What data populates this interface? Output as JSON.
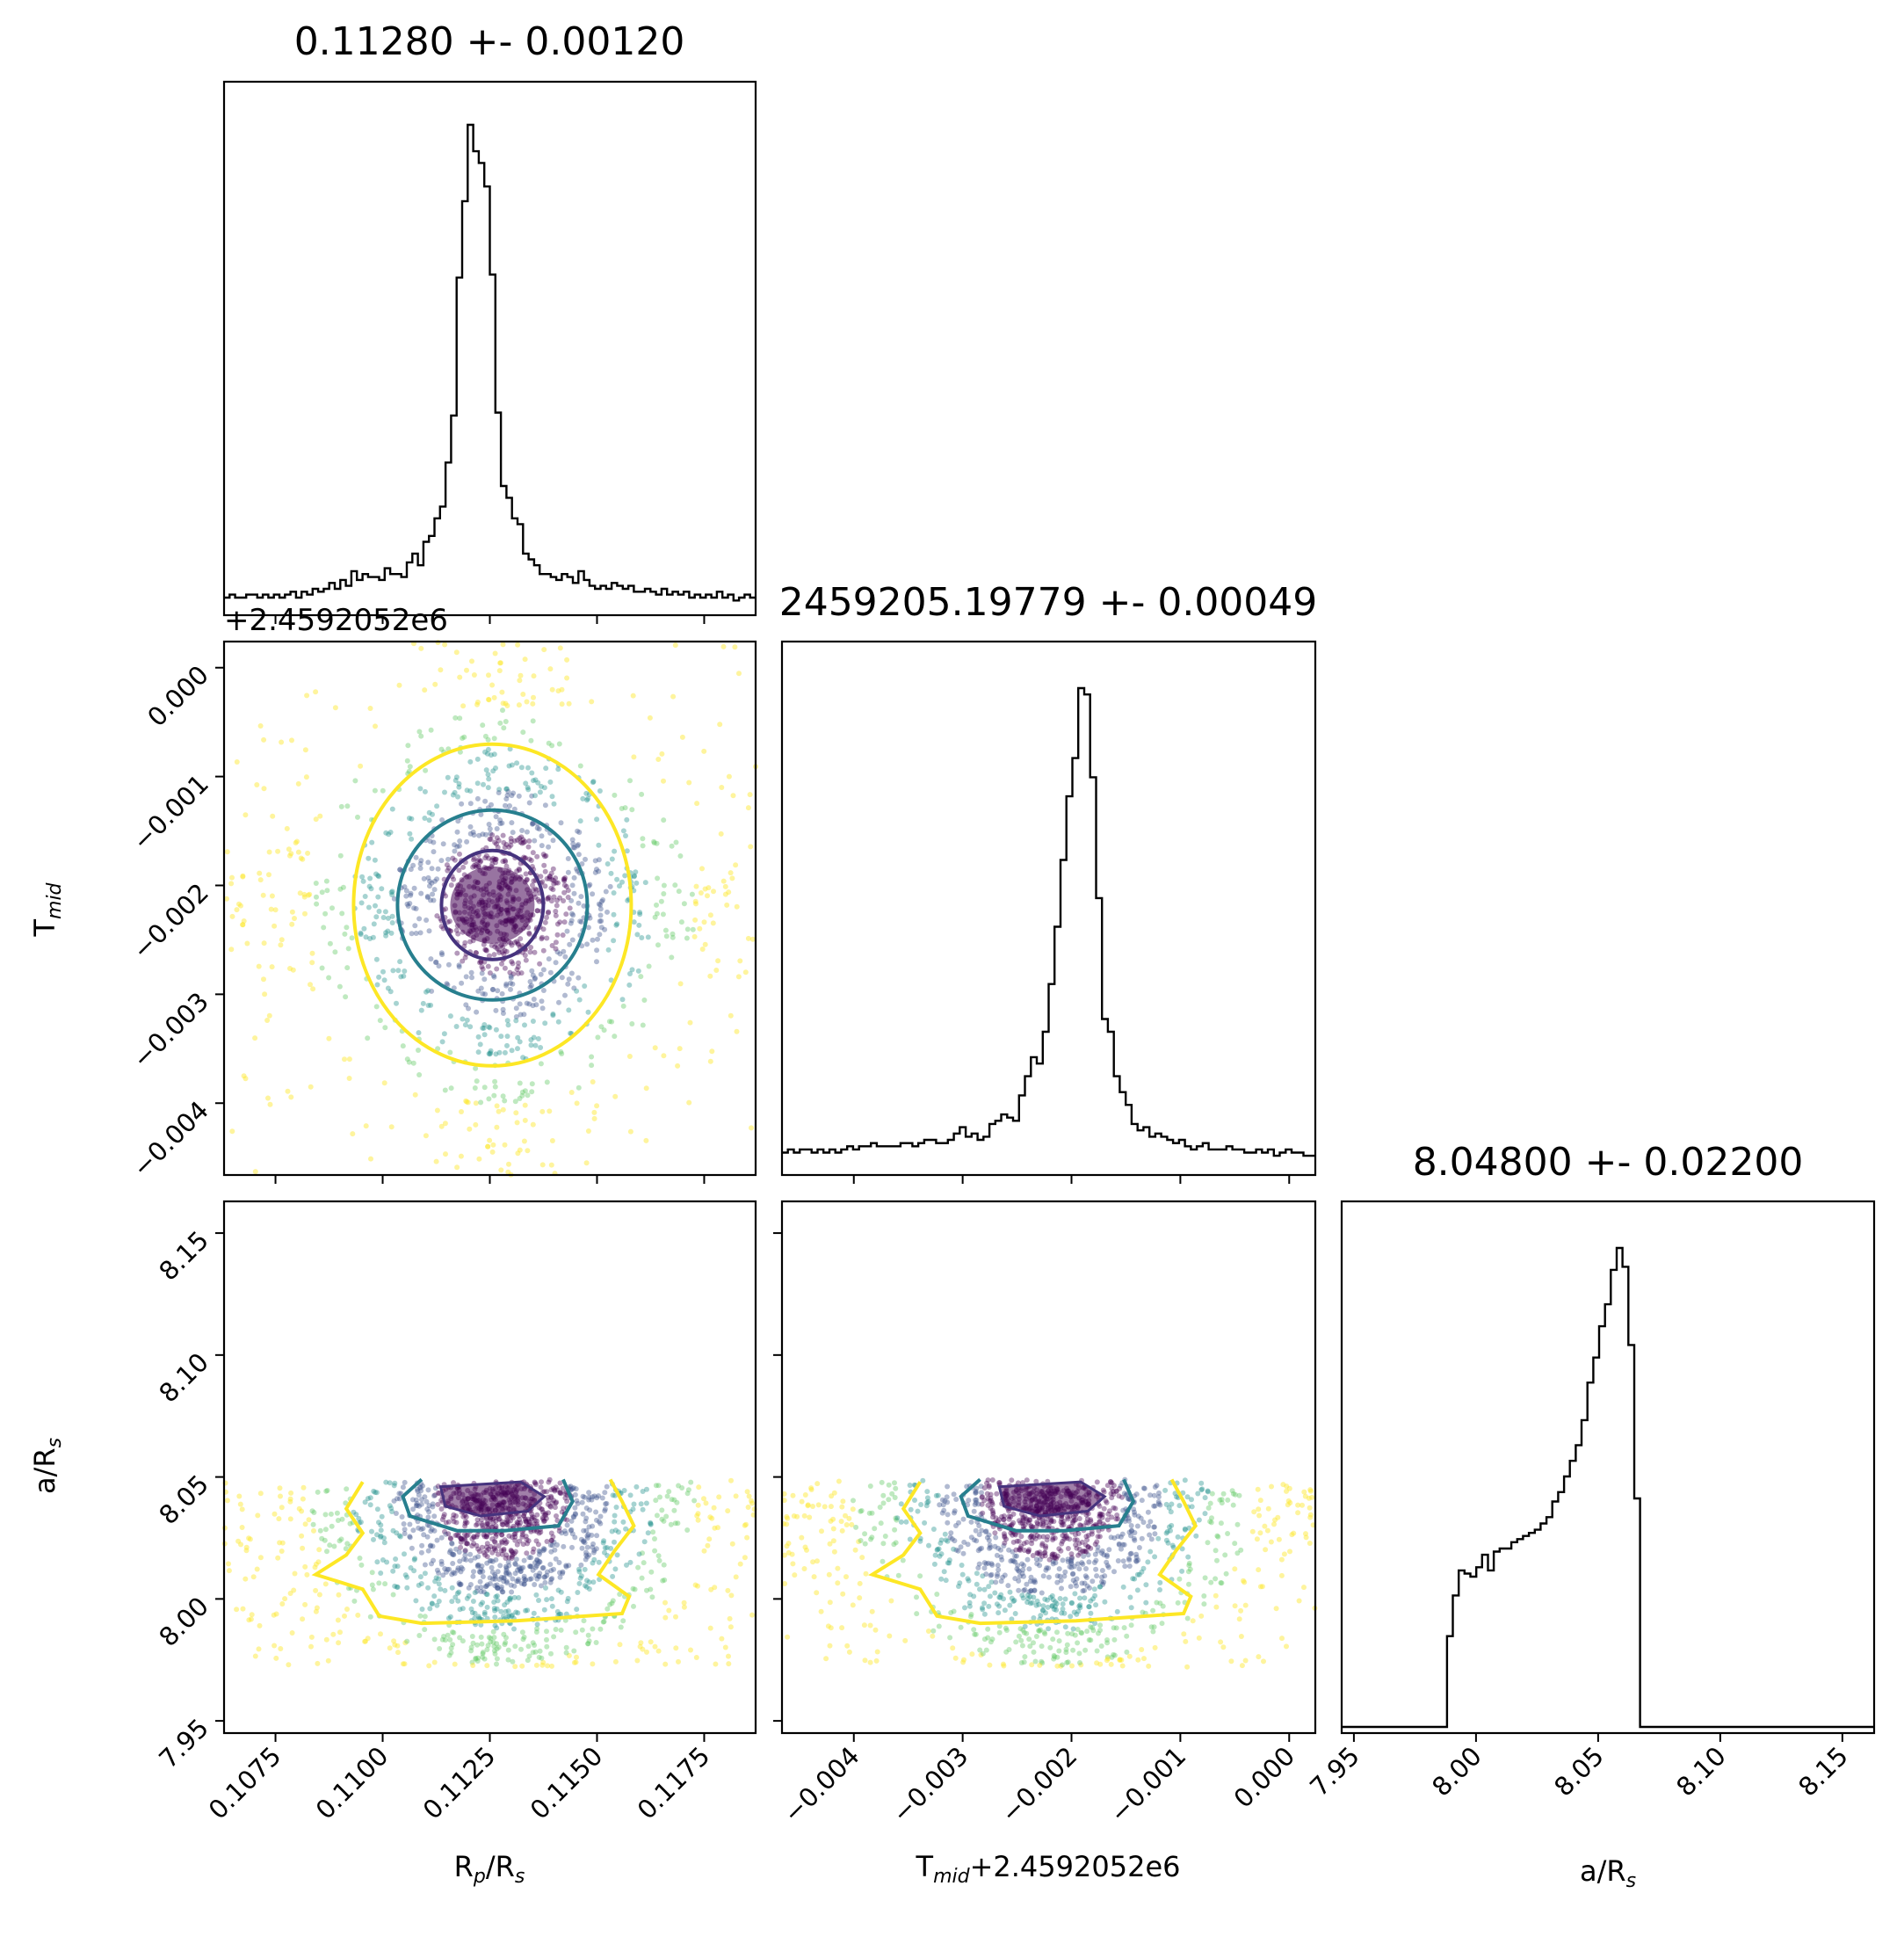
{
  "figure": {
    "type": "corner-plot",
    "parameters": [
      "R_p/R_s",
      "T_mid",
      "a/R_s"
    ]
  },
  "chart_data": {
    "type": "corner",
    "params": [
      {
        "name": "R_p/R_s",
        "label_main": "R",
        "label_sub": "p",
        "label_rest": "/R",
        "label_sub2": "s",
        "title": "0.11280 +- 0.00120",
        "median": 0.1128,
        "sigma": 0.0012,
        "lim": [
          0.1063,
          0.1187
        ],
        "ticks": [
          "0.1075",
          "0.1100",
          "0.1125",
          "0.1150",
          "0.1175"
        ],
        "tick_values": [
          0.1075,
          0.11,
          0.1125,
          0.115,
          0.1175
        ]
      },
      {
        "name": "T_mid",
        "label_main": "T",
        "label_sub": "mid",
        "title": "2459205.19779 +- 0.00049",
        "xlabel_suffix": "+2.4592052e6",
        "offset_text": "+2.4592052e6",
        "median": -0.00218,
        "sigma": 0.00049,
        "lim": [
          -0.00466,
          0.00024
        ],
        "ticks": [
          "−0.004",
          "−0.003",
          "−0.002",
          "−0.001",
          "0.000"
        ],
        "tick_values": [
          -0.004,
          -0.003,
          -0.002,
          -0.001,
          0.0
        ]
      },
      {
        "name": "a/R_s",
        "label_main": "a/R",
        "label_sub": "s",
        "title": "8.04800 +- 0.02200",
        "median": 8.048,
        "sigma": 0.022,
        "lim": [
          7.945,
          8.163
        ],
        "ticks": [
          "7.95",
          "8.00",
          "8.05",
          "8.10",
          "8.15"
        ],
        "tick_values": [
          7.95,
          8.0,
          8.05,
          8.1,
          8.15
        ]
      }
    ],
    "histograms": [
      {
        "param": "R_p/R_s",
        "bin_range": [
          0.1063,
          0.1187
        ],
        "counts": [
          3,
          4,
          3,
          3,
          4,
          4,
          3,
          4,
          3,
          4,
          3,
          4,
          5,
          3,
          5,
          4,
          6,
          5,
          6,
          8,
          6,
          9,
          7,
          12,
          9,
          11,
          10,
          10,
          9,
          13,
          11,
          11,
          10,
          15,
          18,
          14,
          22,
          24,
          30,
          34,
          49,
          65,
          112,
          138,
          164,
          155,
          151,
          143,
          113,
          66,
          41,
          37,
          30,
          28,
          18,
          16,
          14,
          11,
          11,
          10,
          9,
          11,
          10,
          8,
          12,
          9,
          7,
          6,
          7,
          6,
          8,
          7,
          6,
          7,
          5,
          5,
          6,
          5,
          4,
          6,
          4,
          5,
          4,
          5,
          3,
          4,
          3,
          4,
          3,
          5,
          3,
          4,
          2,
          3,
          4,
          3
        ]
      },
      {
        "param": "T_mid",
        "bin_range": [
          -0.00466,
          0.00024
        ],
        "counts": [
          4,
          5,
          4,
          5,
          5,
          4,
          5,
          4,
          5,
          4,
          5,
          6,
          5,
          6,
          6,
          7,
          6,
          6,
          6,
          6,
          7,
          7,
          6,
          7,
          8,
          8,
          7,
          7,
          8,
          10,
          12,
          9,
          10,
          8,
          9,
          13,
          14,
          16,
          15,
          14,
          22,
          28,
          34,
          32,
          42,
          57,
          75,
          96,
          116,
          128,
          150,
          148,
          122,
          84,
          46,
          42,
          28,
          23,
          19,
          13,
          11,
          12,
          9,
          10,
          9,
          8,
          7,
          8,
          6,
          5,
          6,
          7,
          5,
          5,
          5,
          6,
          5,
          5,
          4,
          4,
          5,
          4,
          5,
          3,
          4,
          5,
          4,
          4,
          3,
          3
        ]
      },
      {
        "param": "a/R_s",
        "bin_range": [
          7.945,
          8.163
        ],
        "counts": [
          0,
          0,
          0,
          0,
          0,
          0,
          0,
          0,
          0,
          0,
          0,
          0,
          0,
          0,
          0,
          0,
          0,
          0,
          29,
          42,
          50,
          49,
          48,
          51,
          55,
          50,
          56,
          57,
          57,
          59,
          60,
          61,
          62,
          63,
          65,
          67,
          72,
          75,
          80,
          85,
          90,
          98,
          110,
          118,
          128,
          135,
          146,
          153,
          147,
          122,
          73,
          0,
          0,
          0,
          0,
          0,
          0,
          0,
          0,
          0,
          0,
          0,
          0,
          0,
          0,
          0,
          0,
          0,
          0,
          0,
          0,
          0,
          0,
          0,
          0,
          0,
          0,
          0,
          0,
          0,
          0,
          0,
          0,
          0,
          0,
          0,
          0,
          0,
          0,
          0,
          0
        ]
      }
    ],
    "scatter_panels": [
      {
        "x": "R_p/R_s",
        "y": "T_mid",
        "contours": "1/2/3 sigma circles"
      },
      {
        "x": "R_p/R_s",
        "y": "a/R_s",
        "contours": "truncated at 8.05"
      },
      {
        "x": "T_mid",
        "y": "a/R_s",
        "contours": "truncated at 8.05"
      }
    ],
    "colors": {
      "sigma1": "#46337e",
      "sigma2": "#277f8e",
      "sigma3": "#fde725",
      "core": "#440154",
      "points_inner": "#3b528b",
      "points_mid": "#21918c",
      "points_mid2": "#5ec962",
      "points_outer": "#fde725"
    },
    "colormap": "viridis"
  }
}
